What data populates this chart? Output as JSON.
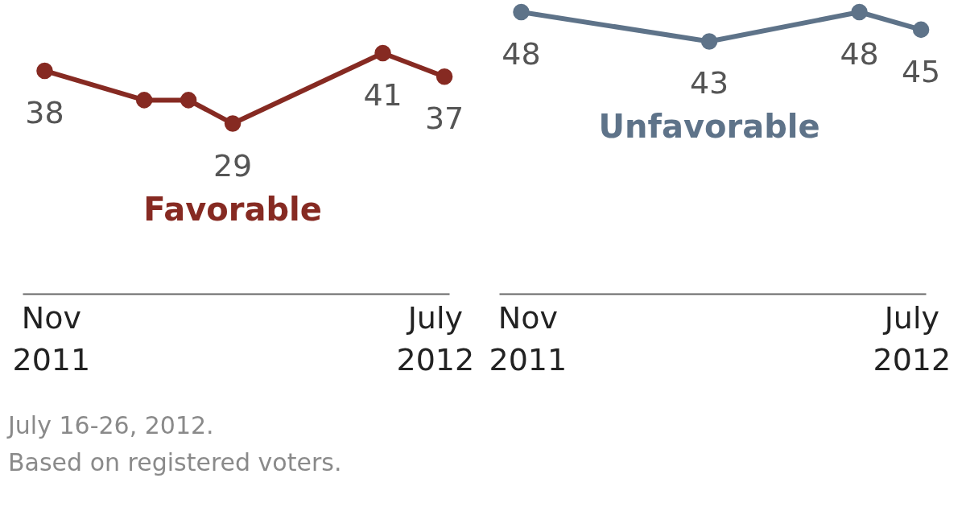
{
  "chart_data": [
    {
      "type": "line",
      "x": [
        "2011-11-11",
        "2012-01-13",
        "2012-02-10",
        "2012-03-09",
        "2012-06-12",
        "2012-07-21"
      ],
      "xlim": [
        "2011-10-28",
        "2012-07-24"
      ],
      "xticks": [
        {
          "value": "2011-11-15",
          "label": "Nov 2011"
        },
        {
          "value": "2012-07-15",
          "label": "July 2012"
        }
      ],
      "tick_labels": "x",
      "marker": "circle",
      "series": [
        {
          "name": "Favorable",
          "color": "#862a22",
          "values": [
            38,
            33,
            33,
            29,
            41,
            37
          ],
          "value_labels": [
            "38",
            null,
            null,
            "29",
            "41",
            "37"
          ]
        }
      ],
      "annotations": [
        "July 16-26, 2012.",
        "Based on registered voters."
      ]
    },
    {
      "type": "line",
      "x": [
        "2011-11-11",
        "2012-03-09",
        "2012-06-12",
        "2012-07-21"
      ],
      "xlim": [
        "2011-10-28",
        "2012-07-24"
      ],
      "xticks": [
        {
          "value": "2011-11-15",
          "label": "Nov 2011"
        },
        {
          "value": "2012-07-15",
          "label": "July 2012"
        }
      ],
      "tick_labels": "x",
      "marker": "circle",
      "data_labels": true,
      "series": [
        {
          "name": "Unfavorable",
          "color": "#5e7389",
          "values": [
            48,
            43,
            48,
            45
          ]
        }
      ]
    }
  ]
}
